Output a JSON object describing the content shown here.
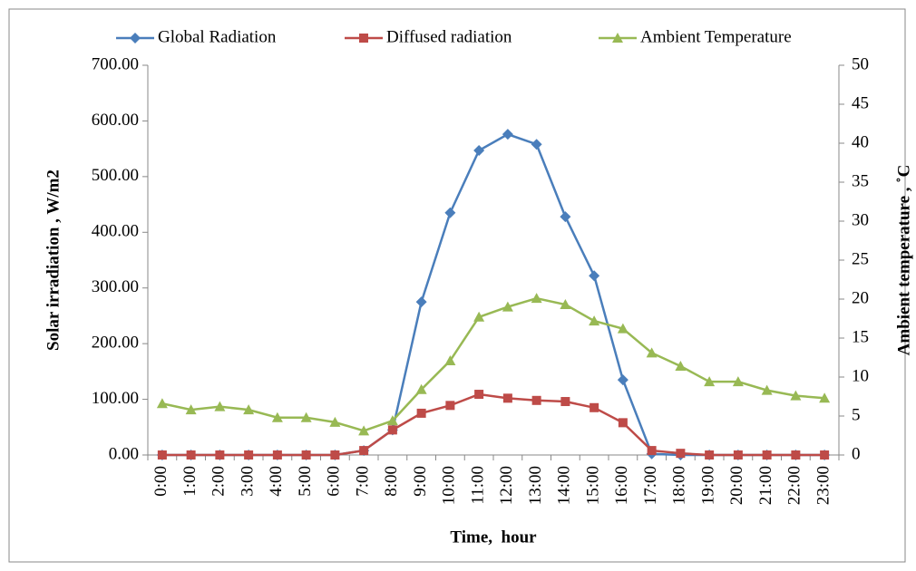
{
  "chart_data": {
    "type": "line",
    "x_label": "Time,  hour",
    "y_label": "Solar irradiation , W/m2",
    "y2_label": "Ambient temperature , ˚C",
    "categories": [
      "0:00",
      "1:00",
      "2:00",
      "3:00",
      "4:00",
      "5:00",
      "6:00",
      "7:00",
      "8:00",
      "9:00",
      "10:00",
      "11:00",
      "12:00",
      "13:00",
      "14:00",
      "15:00",
      "16:00",
      "17:00",
      "18:00",
      "19:00",
      "20:00",
      "21:00",
      "22:00",
      "23:00"
    ],
    "series": [
      {
        "name": "Global Radiation",
        "color": "#4a7ebb",
        "marker": "diamond",
        "axis": "y",
        "values": [
          0,
          0,
          0,
          0,
          0,
          0,
          0,
          8,
          45,
          275,
          435,
          547,
          576,
          558,
          428,
          322,
          135,
          2,
          0,
          0,
          0,
          0,
          0,
          0
        ]
      },
      {
        "name": "Diffused radiation",
        "color": "#be4b48",
        "marker": "square",
        "axis": "y",
        "values": [
          0,
          0,
          0,
          0,
          0,
          0,
          0,
          8,
          45,
          75,
          89,
          109,
          102,
          98,
          96,
          85,
          58,
          8,
          3,
          0,
          0,
          0,
          0,
          0
        ]
      },
      {
        "name": "Ambient Temperature",
        "color": "#98b954",
        "marker": "triangle",
        "axis": "y2",
        "values": [
          6.6,
          5.8,
          6.2,
          5.8,
          4.8,
          4.8,
          4.2,
          3.1,
          4.4,
          8.4,
          12.1,
          17.7,
          19.0,
          20.1,
          19.3,
          17.2,
          16.2,
          13.1,
          11.4,
          9.4,
          9.4,
          8.3,
          7.6,
          7.3
        ]
      }
    ],
    "ylim": [
      0,
      700
    ],
    "yticks": [
      {
        "value": 0,
        "label": "0.00"
      },
      {
        "value": 100,
        "label": "100.00"
      },
      {
        "value": 200,
        "label": "200.00"
      },
      {
        "value": 300,
        "label": "300.00"
      },
      {
        "value": 400,
        "label": "400.00"
      },
      {
        "value": 500,
        "label": "500.00"
      },
      {
        "value": 600,
        "label": "600.00"
      },
      {
        "value": 700,
        "label": "700.00"
      }
    ],
    "y2lim": [
      0,
      50
    ],
    "y2ticks": [
      0,
      5,
      10,
      15,
      20,
      25,
      30,
      35,
      40,
      45,
      50
    ],
    "legend": "top",
    "grid": false
  }
}
